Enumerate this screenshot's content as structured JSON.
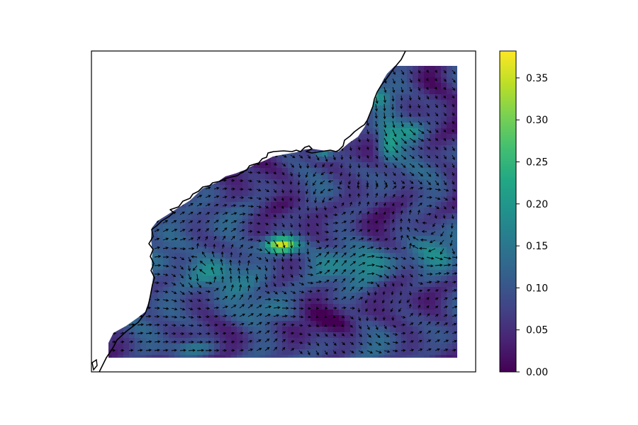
{
  "chart_data": {
    "type": "heatmap",
    "title": "",
    "xlabel": "",
    "ylabel": "",
    "overlay": "quiver",
    "basemap": "coastline",
    "colormap": "viridis",
    "colorbar": {
      "range": [
        0.0,
        0.382
      ],
      "ticks": [
        0.0,
        0.05,
        0.1,
        0.15,
        0.2,
        0.25,
        0.3,
        0.35
      ],
      "tick_labels": [
        "0.00",
        "0.05",
        "0.10",
        "0.15",
        "0.20",
        "0.25",
        "0.30",
        "0.35"
      ],
      "position": "right"
    },
    "grid": false,
    "missing_values": "land shown blank"
  }
}
